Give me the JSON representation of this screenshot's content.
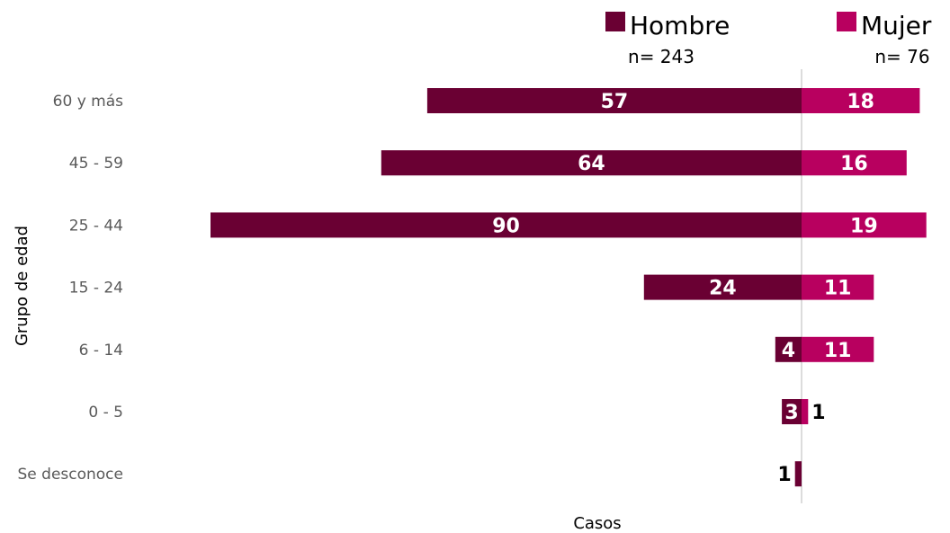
{
  "chart_data": {
    "type": "bar",
    "orientation": "horizontal-diverging",
    "categories": [
      "60 y más",
      "45 - 59",
      "25 - 44",
      "15 - 24",
      "6 - 14",
      "0 - 5",
      "Se desconoce"
    ],
    "series": [
      {
        "name": "Hombre",
        "n_label": "n= 243",
        "color": "#6a0033",
        "values": [
          57,
          64,
          90,
          24,
          4,
          3,
          1
        ]
      },
      {
        "name": "Mujer",
        "n_label": "n= 76",
        "color": "#b8005f",
        "values": [
          18,
          16,
          19,
          11,
          11,
          1,
          null
        ]
      }
    ],
    "xlabel": "Casos",
    "ylabel": "Grupo de edad",
    "legend_position": "top-right",
    "grid": false,
    "center_line_color": "#d0d0d0"
  }
}
